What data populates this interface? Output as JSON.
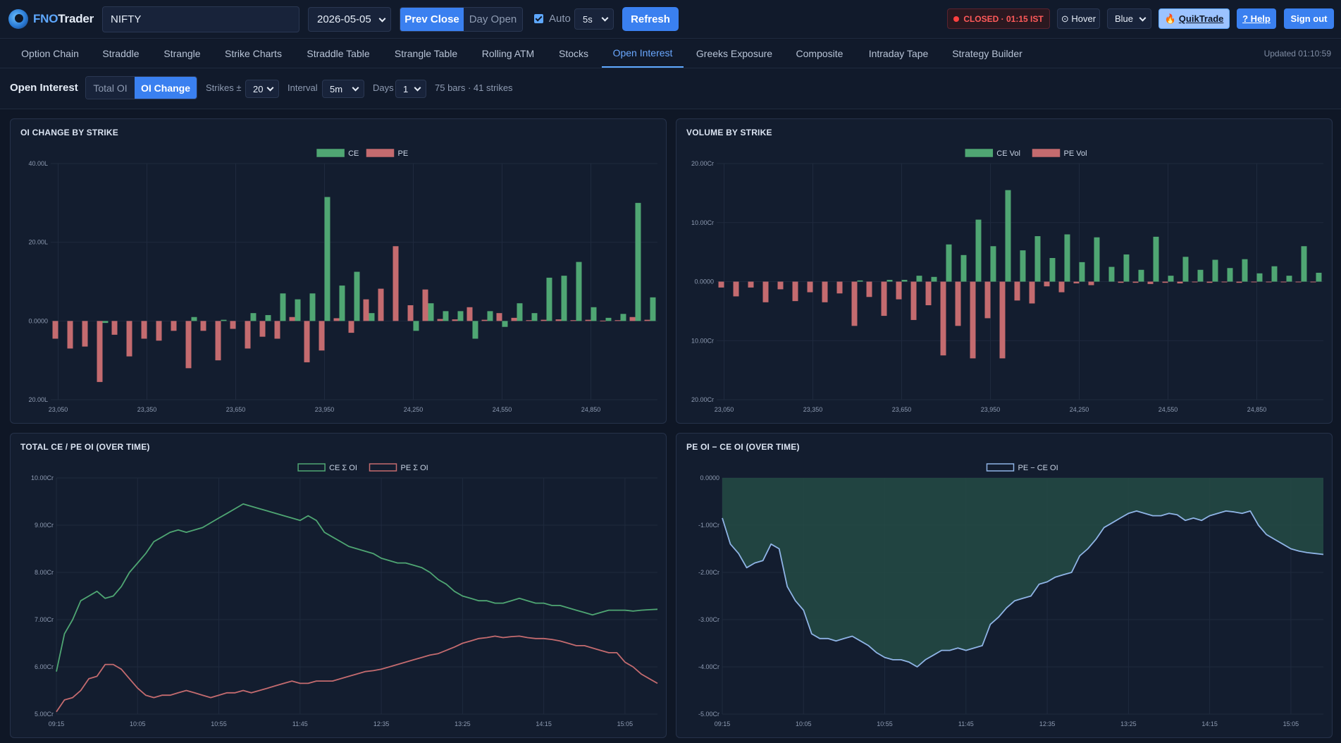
{
  "colors": {
    "ce": "#4fa673",
    "pe": "#c46b6f",
    "accent": "#3a80f0",
    "diff": "#8fb4e6",
    "grid": "#1f2a3e"
  },
  "header": {
    "brand_fno": "FNO",
    "brand_trader": "Trader",
    "symbol": "NIFTY",
    "date": "2026-05-05",
    "base_options": [
      "Prev Close",
      "Day Open"
    ],
    "auto_label": "Auto",
    "auto_interval": "5s",
    "refresh": "Refresh",
    "status": "CLOSED · 01:15 IST",
    "hover": "⊙ Hover",
    "theme": "Blue",
    "quiktrade": "QuikTrade",
    "help": "? Help",
    "signout": "Sign out"
  },
  "tabs": [
    "Option Chain",
    "Straddle",
    "Strangle",
    "Strike Charts",
    "Straddle Table",
    "Strangle Table",
    "Rolling ATM",
    "Stocks",
    "Open Interest",
    "Greeks Exposure",
    "Composite",
    "Intraday Tape",
    "Strategy Builder"
  ],
  "active_tab": "Open Interest",
  "updated": "Updated 01:10:59",
  "controls": {
    "title": "Open Interest",
    "modes": [
      "Total OI",
      "OI Change"
    ],
    "strikes_label": "Strikes ±",
    "strikes_value": "20",
    "interval_label": "Interval",
    "interval_value": "5m",
    "days_label": "Days",
    "days_value": "1",
    "info": "75 bars · 41 strikes"
  },
  "chart_data": [
    {
      "id": "oi-change",
      "title": "OI CHANGE BY STRIKE",
      "type": "bar",
      "ylim": [
        -20,
        40
      ],
      "y_ticks": [
        {
          "v": 40,
          "label": "40.00L"
        },
        {
          "v": 20,
          "label": "20.00L"
        },
        {
          "v": 0,
          "label": "0.0000"
        },
        {
          "v": -20,
          "label": "20.00L"
        }
      ],
      "x_ticks": [
        "23,050",
        "23,350",
        "23,650",
        "23,950",
        "24,250",
        "24,550",
        "24,850"
      ],
      "categories": [
        "23,050",
        "23,100",
        "23,150",
        "23,200",
        "23,250",
        "23,300",
        "23,350",
        "23,400",
        "23,450",
        "23,500",
        "23,550",
        "23,600",
        "23,650",
        "23,700",
        "23,750",
        "23,800",
        "23,850",
        "23,900",
        "23,950",
        "24,000",
        "24,050",
        "24,100",
        "24,150",
        "24,200",
        "24,250",
        "24,300",
        "24,350",
        "24,400",
        "24,450",
        "24,500",
        "24,550",
        "24,600",
        "24,650",
        "24,700",
        "24,750",
        "24,800",
        "24,850",
        "24,900",
        "24,950",
        "25,000",
        "25,050"
      ],
      "series": [
        {
          "name": "CE",
          "values": [
            0,
            0,
            0,
            -0.5,
            0,
            0,
            0,
            0,
            0,
            1,
            0,
            0.3,
            0,
            2,
            1.5,
            7,
            5.5,
            7,
            31.5,
            9,
            12.5,
            2,
            0,
            0,
            -2.5,
            4.5,
            2.5,
            2.5,
            -4.5,
            2.5,
            -1.5,
            4.5,
            2,
            11,
            11.5,
            15,
            3.5,
            0.8,
            1.8,
            30,
            6
          ]
        },
        {
          "name": "PE",
          "values": [
            -4.5,
            -7,
            -6.5,
            -15.5,
            -3.5,
            -9,
            -4.5,
            -5,
            -2.5,
            -12,
            -2.5,
            -10,
            -2,
            -7,
            -4,
            -4.5,
            1,
            -10.5,
            -7.5,
            0.7,
            -3,
            5.5,
            8.2,
            19,
            4,
            8,
            0.5,
            0.4,
            3.5,
            0.3,
            2,
            0.8,
            0.2,
            0.3,
            0.4,
            0.2,
            0.3,
            0.1,
            0.2,
            1,
            0.3
          ]
        }
      ]
    },
    {
      "id": "volume",
      "title": "VOLUME BY STRIKE",
      "type": "bar",
      "ylim": [
        -20,
        20
      ],
      "y_ticks": [
        {
          "v": 20,
          "label": "20.00Cr"
        },
        {
          "v": 10,
          "label": "10.00Cr"
        },
        {
          "v": 0,
          "label": "0.0000"
        },
        {
          "v": -10,
          "label": "10.00Cr"
        },
        {
          "v": -20,
          "label": "20.00Cr"
        }
      ],
      "x_ticks": [
        "23,050",
        "23,350",
        "23,650",
        "23,950",
        "24,250",
        "24,550",
        "24,850"
      ],
      "categories": [
        "23,050",
        "23,100",
        "23,150",
        "23,200",
        "23,250",
        "23,300",
        "23,350",
        "23,400",
        "23,450",
        "23,500",
        "23,550",
        "23,600",
        "23,650",
        "23,700",
        "23,750",
        "23,800",
        "23,850",
        "23,900",
        "23,950",
        "24,000",
        "24,050",
        "24,100",
        "24,150",
        "24,200",
        "24,250",
        "24,300",
        "24,350",
        "24,400",
        "24,450",
        "24,500",
        "24,550",
        "24,600",
        "24,650",
        "24,700",
        "24,750",
        "24,800",
        "24,850",
        "24,900",
        "24,950",
        "25,000",
        "25,050"
      ],
      "series": [
        {
          "name": "CE Vol",
          "values": [
            0,
            0,
            0,
            0,
            0,
            0,
            0,
            0,
            0,
            0.2,
            0,
            0.3,
            0.3,
            1,
            0.8,
            6.3,
            4.5,
            10.5,
            6,
            15.5,
            5.3,
            7.7,
            4,
            8,
            3.3,
            7.5,
            2.5,
            4.6,
            2,
            7.6,
            1,
            4.2,
            2,
            3.7,
            2.3,
            3.8,
            1.4,
            2.6,
            1,
            6,
            1.5
          ]
        },
        {
          "name": "PE Vol",
          "values": [
            -1,
            -2.5,
            -1,
            -3.5,
            -1.3,
            -3.3,
            -1.8,
            -3.5,
            -2,
            -7.5,
            -2.6,
            -5.8,
            -3,
            -6.5,
            -4,
            -12.5,
            -7.5,
            -13,
            -6.2,
            -13,
            -3.2,
            -3.7,
            -0.8,
            -1.8,
            -0.3,
            -0.6,
            0,
            -0.2,
            -0.2,
            -0.4,
            -0.2,
            -0.3,
            -0.1,
            -0.2,
            -0.1,
            -0.2,
            -0.1,
            -0.1,
            -0.1,
            -0.1,
            -0.1
          ]
        }
      ]
    },
    {
      "id": "total-oi",
      "title": "TOTAL CE / PE OI (OVER TIME)",
      "type": "line",
      "ylim": [
        5,
        10
      ],
      "y_ticks": [
        {
          "v": 10,
          "label": "10.00Cr"
        },
        {
          "v": 9,
          "label": "9.00Cr"
        },
        {
          "v": 8,
          "label": "8.00Cr"
        },
        {
          "v": 7,
          "label": "7.00Cr"
        },
        {
          "v": 6,
          "label": "6.00Cr"
        },
        {
          "v": 5,
          "label": "5.00Cr"
        }
      ],
      "x_ticks": [
        "09:15",
        "10:05",
        "10:55",
        "11:45",
        "12:35",
        "13:25",
        "14:15",
        "15:05"
      ],
      "x_minutes": [
        0,
        50,
        100,
        150,
        200,
        250,
        300,
        350
      ],
      "series": [
        {
          "name": "CE Σ OI",
          "t": [
            0,
            5,
            10,
            15,
            20,
            25,
            30,
            35,
            40,
            45,
            50,
            55,
            60,
            65,
            70,
            75,
            80,
            85,
            90,
            95,
            100,
            105,
            110,
            115,
            120,
            125,
            130,
            135,
            140,
            145,
            150,
            155,
            160,
            165,
            170,
            175,
            180,
            185,
            190,
            195,
            200,
            205,
            210,
            215,
            220,
            225,
            230,
            235,
            240,
            245,
            250,
            255,
            260,
            265,
            270,
            275,
            280,
            285,
            290,
            295,
            300,
            305,
            310,
            315,
            320,
            325,
            330,
            335,
            340,
            345,
            350,
            355,
            360,
            365,
            370
          ],
          "values": [
            5.9,
            6.7,
            7.0,
            7.4,
            7.5,
            7.6,
            7.45,
            7.5,
            7.7,
            8.0,
            8.2,
            8.4,
            8.65,
            8.75,
            8.85,
            8.9,
            8.85,
            8.9,
            8.95,
            9.05,
            9.15,
            9.25,
            9.35,
            9.45,
            9.4,
            9.35,
            9.3,
            9.25,
            9.2,
            9.15,
            9.1,
            9.2,
            9.1,
            8.85,
            8.75,
            8.65,
            8.55,
            8.5,
            8.45,
            8.4,
            8.3,
            8.25,
            8.2,
            8.2,
            8.15,
            8.1,
            8.0,
            7.85,
            7.75,
            7.6,
            7.5,
            7.45,
            7.4,
            7.4,
            7.35,
            7.35,
            7.4,
            7.45,
            7.4,
            7.35,
            7.35,
            7.3,
            7.3,
            7.25,
            7.2,
            7.15,
            7.1,
            7.15,
            7.2,
            7.2,
            7.2,
            7.18,
            7.2,
            7.21,
            7.22
          ]
        },
        {
          "name": "PE Σ OI",
          "t": [
            0,
            5,
            10,
            15,
            20,
            25,
            30,
            35,
            40,
            45,
            50,
            55,
            60,
            65,
            70,
            75,
            80,
            85,
            90,
            95,
            100,
            105,
            110,
            115,
            120,
            125,
            130,
            135,
            140,
            145,
            150,
            155,
            160,
            165,
            170,
            175,
            180,
            185,
            190,
            195,
            200,
            205,
            210,
            215,
            220,
            225,
            230,
            235,
            240,
            245,
            250,
            255,
            260,
            265,
            270,
            275,
            280,
            285,
            290,
            295,
            300,
            305,
            310,
            315,
            320,
            325,
            330,
            335,
            340,
            345,
            350,
            355,
            360,
            365,
            370
          ],
          "values": [
            5.05,
            5.3,
            5.35,
            5.5,
            5.75,
            5.8,
            6.05,
            6.05,
            5.95,
            5.75,
            5.55,
            5.4,
            5.35,
            5.4,
            5.4,
            5.45,
            5.5,
            5.45,
            5.4,
            5.35,
            5.4,
            5.45,
            5.45,
            5.5,
            5.45,
            5.5,
            5.55,
            5.6,
            5.65,
            5.7,
            5.65,
            5.65,
            5.7,
            5.7,
            5.7,
            5.75,
            5.8,
            5.85,
            5.9,
            5.92,
            5.95,
            6.0,
            6.05,
            6.1,
            6.15,
            6.2,
            6.25,
            6.28,
            6.35,
            6.42,
            6.5,
            6.55,
            6.6,
            6.62,
            6.65,
            6.62,
            6.64,
            6.65,
            6.62,
            6.6,
            6.6,
            6.58,
            6.55,
            6.5,
            6.45,
            6.45,
            6.4,
            6.35,
            6.3,
            6.3,
            6.1,
            6.0,
            5.85,
            5.75,
            5.65
          ]
        }
      ]
    },
    {
      "id": "diff-oi",
      "title": "PE OI − CE OI (OVER TIME)",
      "type": "area",
      "ylim": [
        -5,
        0
      ],
      "y_ticks": [
        {
          "v": 0,
          "label": "0.0000"
        },
        {
          "v": -1,
          "label": "-1.00Cr"
        },
        {
          "v": -2,
          "label": "-2.00Cr"
        },
        {
          "v": -3,
          "label": "-3.00Cr"
        },
        {
          "v": -4,
          "label": "-4.00Cr"
        },
        {
          "v": -5,
          "label": "-5.00Cr"
        }
      ],
      "x_ticks": [
        "09:15",
        "10:05",
        "10:55",
        "11:45",
        "12:35",
        "13:25",
        "14:15",
        "15:05"
      ],
      "x_minutes": [
        0,
        50,
        100,
        150,
        200,
        250,
        300,
        350
      ],
      "series": [
        {
          "name": "PE − CE OI",
          "t": [
            0,
            5,
            10,
            15,
            20,
            25,
            30,
            35,
            40,
            45,
            50,
            55,
            60,
            65,
            70,
            75,
            80,
            85,
            90,
            95,
            100,
            105,
            110,
            115,
            120,
            125,
            130,
            135,
            140,
            145,
            150,
            155,
            160,
            165,
            170,
            175,
            180,
            185,
            190,
            195,
            200,
            205,
            210,
            215,
            220,
            225,
            230,
            235,
            240,
            245,
            250,
            255,
            260,
            265,
            270,
            275,
            280,
            285,
            290,
            295,
            300,
            305,
            310,
            315,
            320,
            325,
            330,
            335,
            340,
            345,
            350,
            355,
            360,
            365,
            370
          ],
          "values": [
            -0.85,
            -1.4,
            -1.6,
            -1.9,
            -1.8,
            -1.75,
            -1.4,
            -1.5,
            -2.3,
            -2.6,
            -2.8,
            -3.3,
            -3.4,
            -3.4,
            -3.45,
            -3.4,
            -3.35,
            -3.45,
            -3.55,
            -3.7,
            -3.8,
            -3.85,
            -3.85,
            -3.9,
            -4.0,
            -3.85,
            -3.75,
            -3.65,
            -3.65,
            -3.6,
            -3.65,
            -3.6,
            -3.55,
            -3.1,
            -2.95,
            -2.75,
            -2.6,
            -2.55,
            -2.5,
            -2.25,
            -2.2,
            -2.1,
            -2.05,
            -2.0,
            -1.65,
            -1.5,
            -1.3,
            -1.05,
            -0.95,
            -0.85,
            -0.75,
            -0.7,
            -0.75,
            -0.8,
            -0.8,
            -0.75,
            -0.78,
            -0.9,
            -0.85,
            -0.9,
            -0.8,
            -0.75,
            -0.7,
            -0.72,
            -0.75,
            -0.7,
            -1.0,
            -1.2,
            -1.3,
            -1.4,
            -1.5,
            -1.55,
            -1.58,
            -1.6,
            -1.62
          ]
        }
      ]
    }
  ]
}
